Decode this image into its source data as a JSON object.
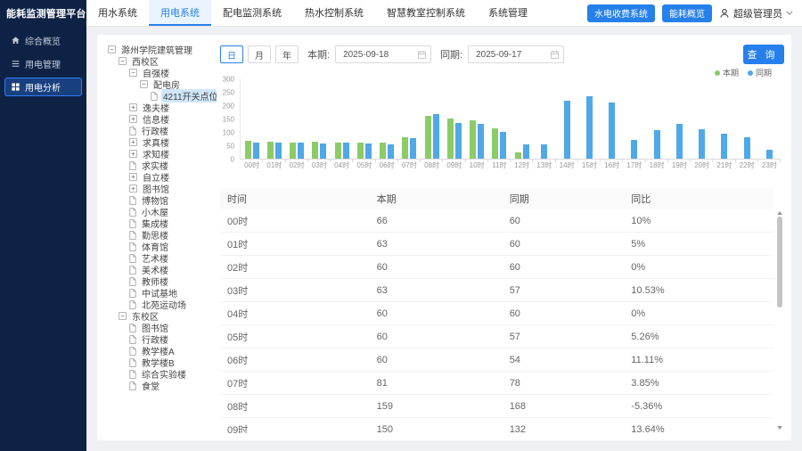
{
  "app": {
    "title": "能耗监测管理平台"
  },
  "sidebar": {
    "items": [
      {
        "label": "综合概览",
        "icon": "home-icon",
        "active": false
      },
      {
        "label": "用电管理",
        "icon": "list-icon",
        "active": false
      },
      {
        "label": "用电分析",
        "icon": "grid-icon",
        "active": true
      }
    ]
  },
  "topnav": {
    "tabs": [
      {
        "label": "用水系统",
        "active": false
      },
      {
        "label": "用电系统",
        "active": true
      },
      {
        "label": "配电监测系统",
        "active": false
      },
      {
        "label": "热水控制系统",
        "active": false
      },
      {
        "label": "智慧教室控制系统",
        "active": false
      },
      {
        "label": "系统管理",
        "active": false
      }
    ],
    "actions": [
      "水电收费系统",
      "能耗概览"
    ],
    "user": "超级管理员"
  },
  "tree": {
    "nodes": [
      {
        "label": "滁州学院建筑管理",
        "level": 0,
        "expander": "minus",
        "selected": false
      },
      {
        "label": "西校区",
        "level": 1,
        "expander": "minus",
        "selected": false
      },
      {
        "label": "自强楼",
        "level": 2,
        "expander": "minus",
        "selected": false
      },
      {
        "label": "配电房",
        "level": 3,
        "expander": "minus",
        "selected": false
      },
      {
        "label": "4211开关点位",
        "level": 4,
        "expander": "file",
        "selected": true
      },
      {
        "label": "逸夫楼",
        "level": 2,
        "expander": "plus",
        "selected": false
      },
      {
        "label": "信息楼",
        "level": 2,
        "expander": "plus",
        "selected": false
      },
      {
        "label": "行政楼",
        "level": 2,
        "expander": "file",
        "selected": false
      },
      {
        "label": "求真楼",
        "level": 2,
        "expander": "plus",
        "selected": false
      },
      {
        "label": "求知楼",
        "level": 2,
        "expander": "plus",
        "selected": false
      },
      {
        "label": "求实楼",
        "level": 2,
        "expander": "file",
        "selected": false
      },
      {
        "label": "自立楼",
        "level": 2,
        "expander": "plus",
        "selected": false
      },
      {
        "label": "图书馆",
        "level": 2,
        "expander": "plus",
        "selected": false
      },
      {
        "label": "博物馆",
        "level": 2,
        "expander": "file",
        "selected": false
      },
      {
        "label": "小木屋",
        "level": 2,
        "expander": "file",
        "selected": false
      },
      {
        "label": "集成楼",
        "level": 2,
        "expander": "file",
        "selected": false
      },
      {
        "label": "勤思楼",
        "level": 2,
        "expander": "file",
        "selected": false
      },
      {
        "label": "体育馆",
        "level": 2,
        "expander": "file",
        "selected": false
      },
      {
        "label": "艺术楼",
        "level": 2,
        "expander": "file",
        "selected": false
      },
      {
        "label": "美术楼",
        "level": 2,
        "expander": "file",
        "selected": false
      },
      {
        "label": "教师楼",
        "level": 2,
        "expander": "file",
        "selected": false
      },
      {
        "label": "中试基地",
        "level": 2,
        "expander": "file",
        "selected": false
      },
      {
        "label": "北苑运动场",
        "level": 2,
        "expander": "file",
        "selected": false
      },
      {
        "label": "东校区",
        "level": 1,
        "expander": "minus",
        "selected": false
      },
      {
        "label": "图书馆",
        "level": 2,
        "expander": "file",
        "selected": false
      },
      {
        "label": "行政楼",
        "level": 2,
        "expander": "file",
        "selected": false
      },
      {
        "label": "教学楼A",
        "level": 2,
        "expander": "file",
        "selected": false
      },
      {
        "label": "教学楼B",
        "level": 2,
        "expander": "file",
        "selected": false
      },
      {
        "label": "综合实验楼",
        "level": 2,
        "expander": "file",
        "selected": false
      },
      {
        "label": "食堂",
        "level": 2,
        "expander": "file",
        "selected": false
      }
    ]
  },
  "toolbar": {
    "period_options": [
      {
        "label": "日",
        "active": true
      },
      {
        "label": "月",
        "active": false
      },
      {
        "label": "年",
        "active": false
      }
    ],
    "current_label": "本期:",
    "current_value": "2025-09-18",
    "compare_label": "同期:",
    "compare_value": "2025-09-17",
    "query_label": "查 询"
  },
  "chart_data": {
    "type": "bar",
    "title": "",
    "xlabel": "",
    "ylabel": "",
    "categories": [
      "00时",
      "01时",
      "02时",
      "03时",
      "04时",
      "05时",
      "06时",
      "07时",
      "08时",
      "09时",
      "10时",
      "11时",
      "12时",
      "13时",
      "14时",
      "15时",
      "16时",
      "17时",
      "18时",
      "19时",
      "20时",
      "21时",
      "22时",
      "23时"
    ],
    "series": [
      {
        "name": "本期",
        "color": "#8ccb67",
        "values": [
          66,
          63,
          60,
          63,
          60,
          60,
          60,
          81,
          159,
          150,
          145,
          112,
          25,
          null,
          null,
          null,
          null,
          null,
          null,
          null,
          null,
          null,
          null,
          null
        ]
      },
      {
        "name": "同期",
        "color": "#4fa8e8",
        "values": [
          60,
          60,
          60,
          57,
          60,
          57,
          54,
          78,
          168,
          132,
          130,
          100,
          52,
          52,
          217,
          235,
          210,
          70,
          107,
          131,
          110,
          92,
          79,
          34
        ]
      }
    ],
    "ylim": [
      0,
      300
    ],
    "yticks": [
      0,
      50,
      100,
      150,
      200,
      250,
      300
    ],
    "legend_position": "top-right",
    "grid": false
  },
  "table": {
    "columns": [
      "时间",
      "本期",
      "同期",
      "同比"
    ],
    "rows": [
      [
        "00时",
        "66",
        "60",
        "10%"
      ],
      [
        "01时",
        "63",
        "60",
        "5%"
      ],
      [
        "02时",
        "60",
        "60",
        "0%"
      ],
      [
        "03时",
        "63",
        "57",
        "10.53%"
      ],
      [
        "04时",
        "60",
        "60",
        "0%"
      ],
      [
        "05时",
        "60",
        "57",
        "5.26%"
      ],
      [
        "06时",
        "60",
        "54",
        "11.11%"
      ],
      [
        "07时",
        "81",
        "78",
        "3.85%"
      ],
      [
        "08时",
        "159",
        "168",
        "-5.36%"
      ],
      [
        "09时",
        "150",
        "132",
        "13.64%"
      ]
    ]
  },
  "colors": {
    "primary": "#2680eb",
    "sidebar_bg": "#0e2246",
    "series_current": "#8ccb67",
    "series_compare": "#4fa8e8"
  }
}
